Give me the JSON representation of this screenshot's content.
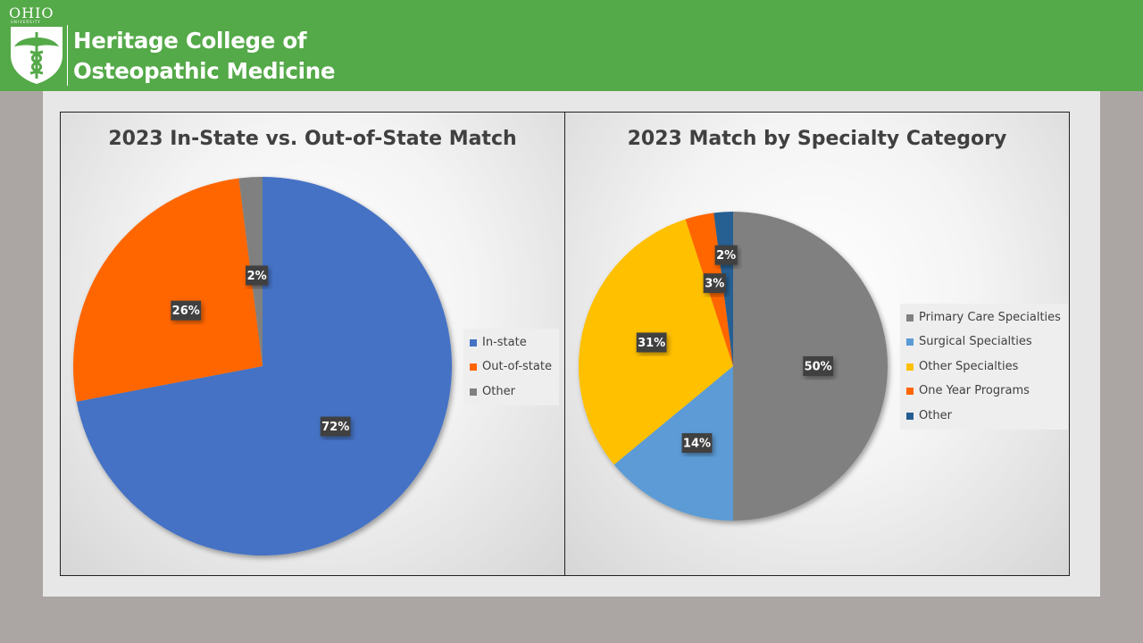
{
  "header": {
    "logo_ohio": "OHIO",
    "logo_university": "UNIVERSITY",
    "title_line1": "Heritage College of",
    "title_line2": "Osteopathic Medicine",
    "background_color": "#54a948"
  },
  "chart_data": [
    {
      "type": "pie",
      "title": "2023 In-State vs. Out-of-State Match",
      "categories": [
        "In-state",
        "Out-of-state",
        "Other"
      ],
      "values": [
        72,
        26,
        2
      ],
      "data_labels": [
        "72%",
        "26%",
        "2%"
      ],
      "colors": [
        "#4472c4",
        "#ff6600",
        "#808080"
      ],
      "legend_position": "right"
    },
    {
      "type": "pie",
      "title": "2023 Match by Specialty Category",
      "categories": [
        "Primary Care Specialties",
        "Surgical Specialties",
        "Other Specialties",
        "One Year Programs",
        "Other"
      ],
      "values": [
        50,
        14,
        31,
        3,
        2
      ],
      "data_labels": [
        "50%",
        "14%",
        "31%",
        "3%",
        "2%"
      ],
      "colors": [
        "#808080",
        "#5b9bd5",
        "#ffc000",
        "#ff6600",
        "#255e91"
      ],
      "legend_position": "right"
    }
  ]
}
